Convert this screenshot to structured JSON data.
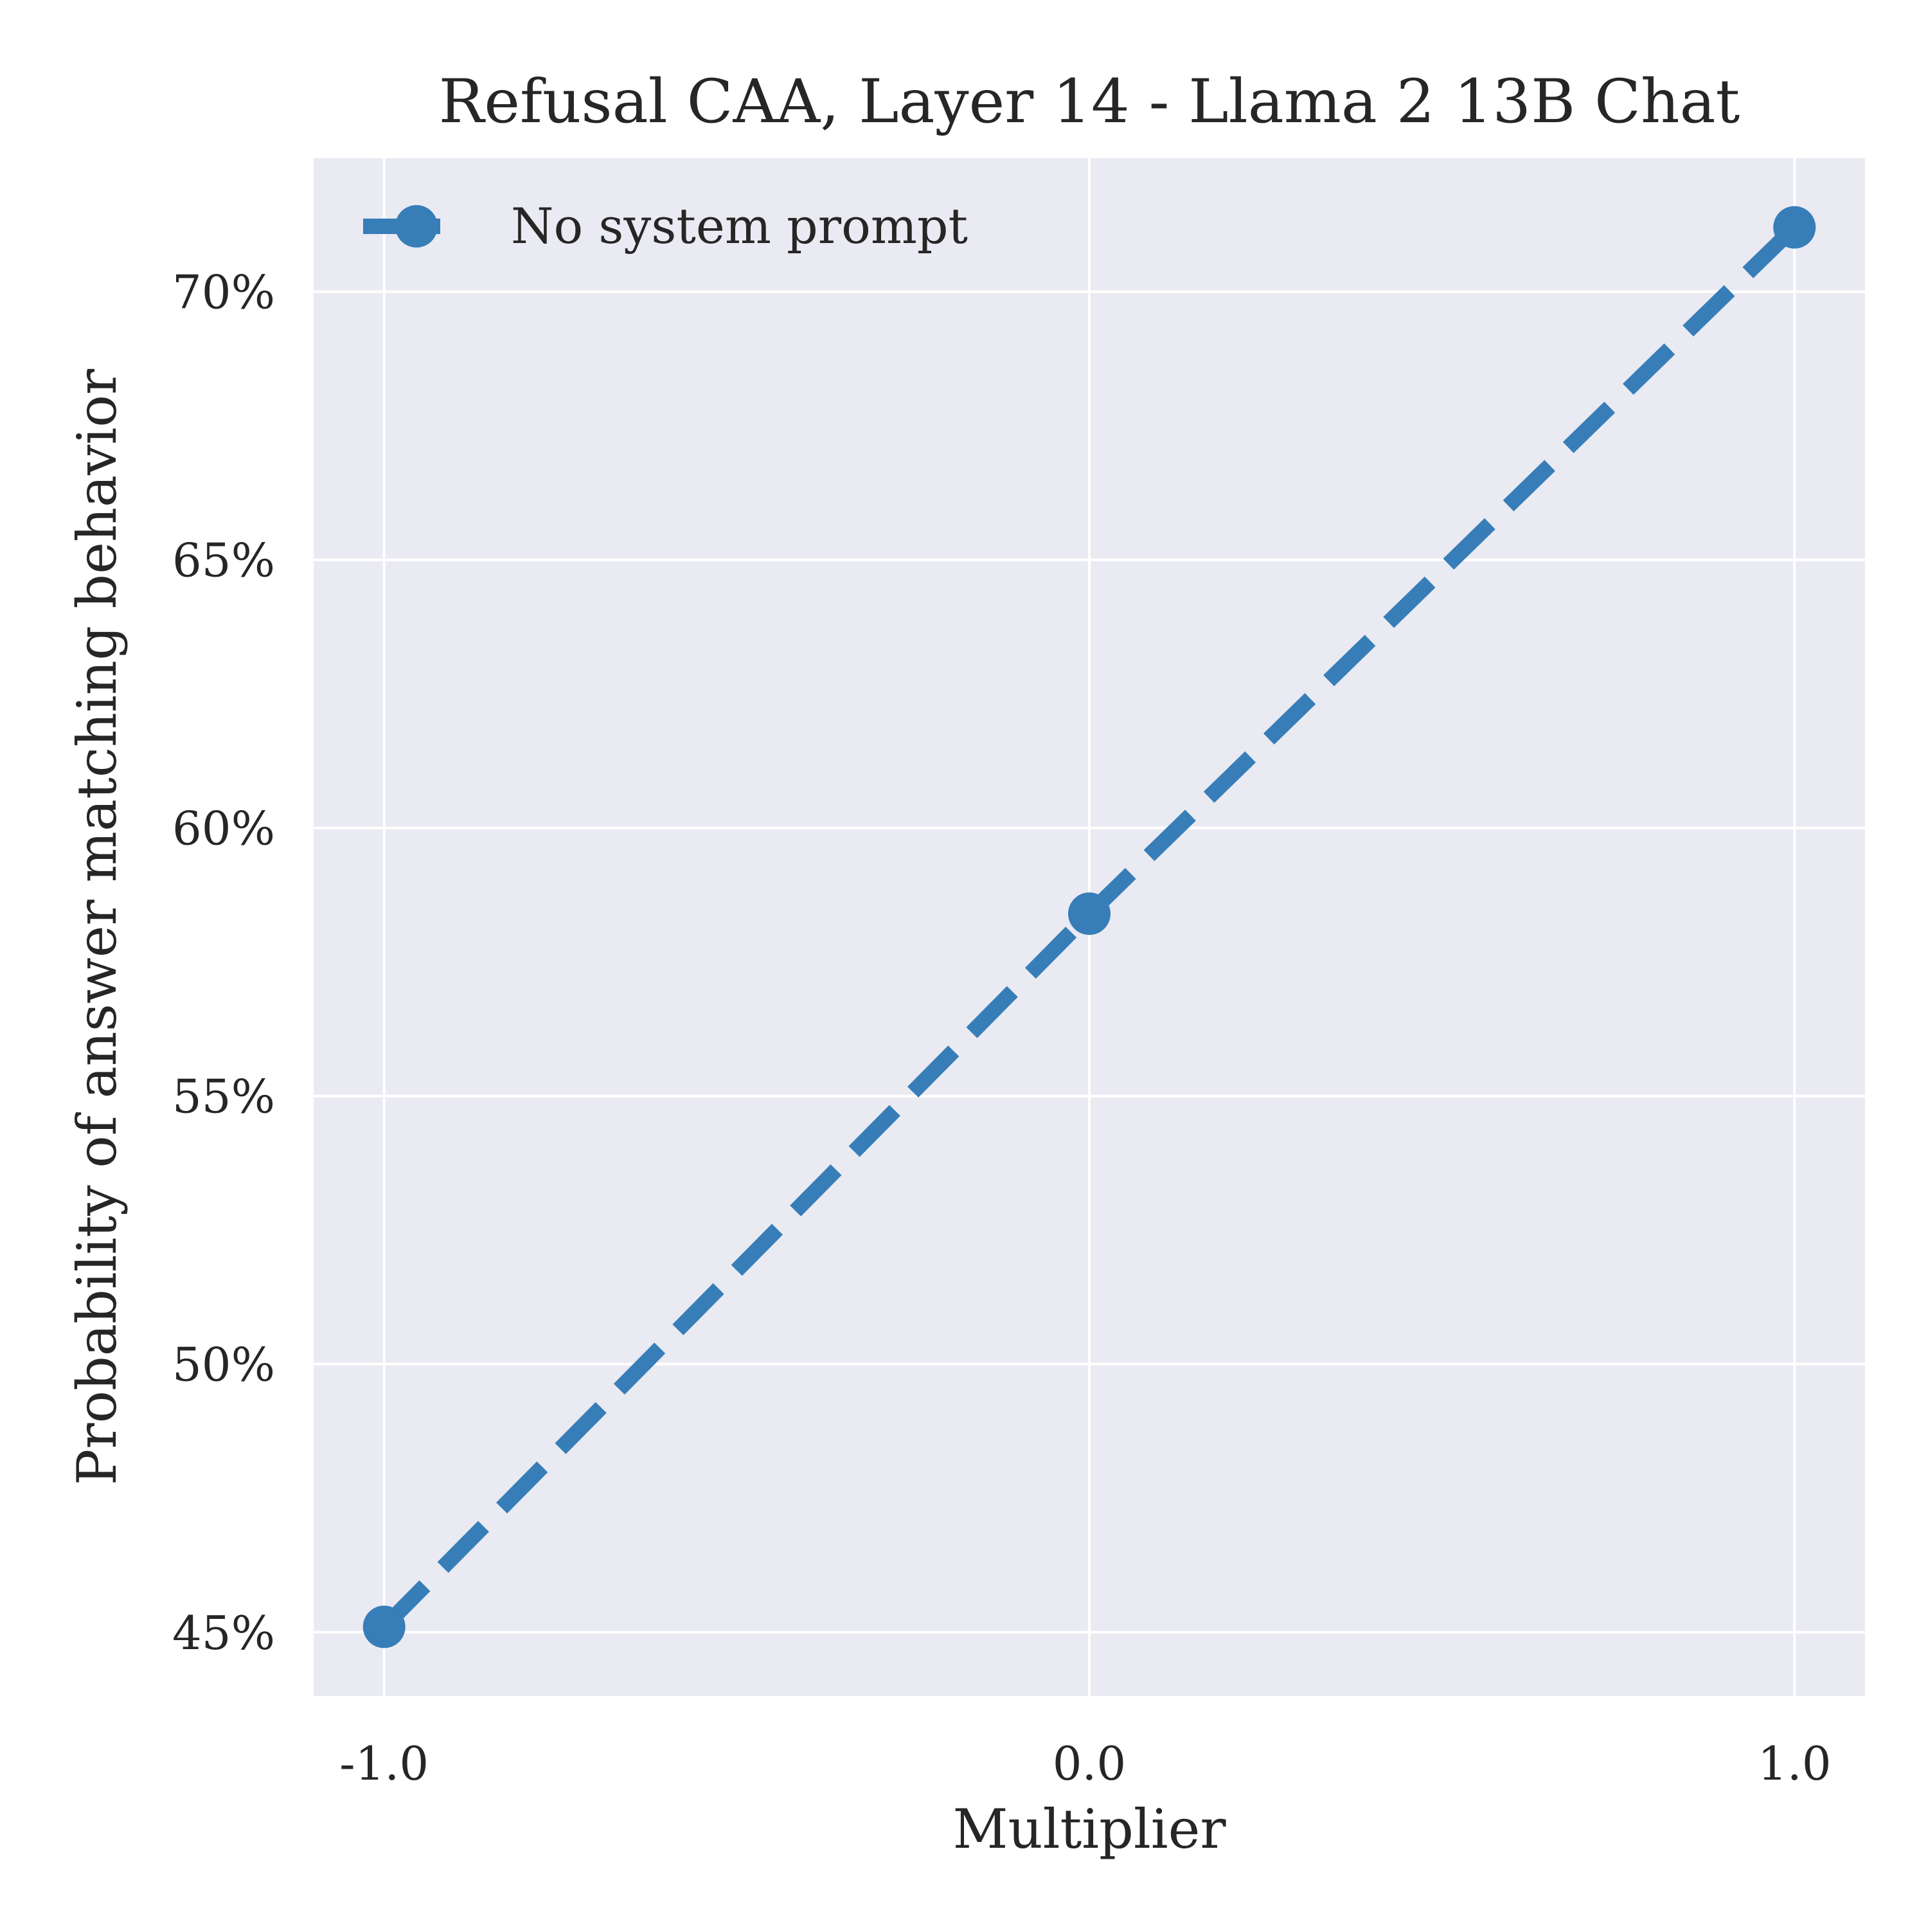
{
  "chart_data": {
    "type": "line",
    "title": "Refusal CAA, Layer 14 - Llama 2 13B Chat",
    "xlabel": "Multiplier",
    "ylabel": "Probability of answer matching behavior",
    "x": [
      -1.0,
      0.0,
      1.0
    ],
    "x_tick_values": [
      -1.0,
      0.0,
      1.0
    ],
    "x_tick_labels": [
      "-1.0",
      "0.0",
      "1.0"
    ],
    "y_tick_values": [
      0.45,
      0.5,
      0.55,
      0.6,
      0.65,
      0.7
    ],
    "y_tick_labels": [
      "45%",
      "50%",
      "55%",
      "60%",
      "65%",
      "70%"
    ],
    "xlim": [
      -1.1,
      1.1
    ],
    "ylim": [
      0.4381,
      0.7249
    ],
    "grid": true,
    "legend_position": "top-left",
    "series": [
      {
        "name": "No system prompt",
        "values": [
          0.451,
          0.584,
          0.712
        ],
        "color": "#377eb8",
        "line_style": "dashed",
        "marker": "circle"
      }
    ],
    "colors": {
      "plot_background": "#eaeaf2",
      "grid": "#ffffff",
      "text": "#262626"
    }
  }
}
